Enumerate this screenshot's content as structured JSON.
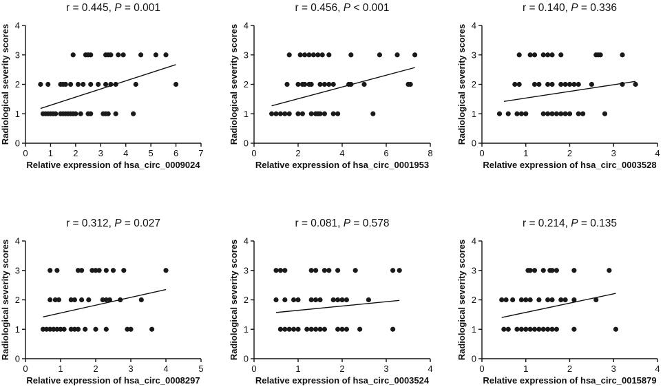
{
  "chart_data": [
    {
      "type": "scatter",
      "title": {
        "pre": "r = 0.445, ",
        "p": "P",
        "post": " = 0.001"
      },
      "xlabel": "Relative expression of hsa_circ_0009024",
      "ylabel": "Radiological severity scores",
      "xlim": [
        0,
        7
      ],
      "ylim": [
        0,
        4
      ],
      "xticks": [
        0,
        1,
        2,
        3,
        4,
        5,
        6,
        7
      ],
      "yticks": [
        0,
        1,
        2,
        3,
        4
      ],
      "points": [
        [
          0.7,
          1
        ],
        [
          0.8,
          1
        ],
        [
          0.9,
          1
        ],
        [
          1.0,
          1
        ],
        [
          1.1,
          1
        ],
        [
          1.2,
          1
        ],
        [
          1.4,
          1
        ],
        [
          1.5,
          1
        ],
        [
          1.6,
          1
        ],
        [
          1.7,
          1
        ],
        [
          1.8,
          1
        ],
        [
          1.9,
          1
        ],
        [
          2.0,
          1
        ],
        [
          2.2,
          1
        ],
        [
          2.5,
          1
        ],
        [
          2.6,
          1
        ],
        [
          3.1,
          1
        ],
        [
          3.2,
          1
        ],
        [
          3.3,
          1
        ],
        [
          3.6,
          1
        ],
        [
          4.3,
          1
        ],
        [
          0.6,
          2
        ],
        [
          0.9,
          2
        ],
        [
          1.4,
          2
        ],
        [
          1.5,
          2
        ],
        [
          1.6,
          2
        ],
        [
          1.8,
          2
        ],
        [
          2.1,
          2
        ],
        [
          2.3,
          2
        ],
        [
          2.6,
          2
        ],
        [
          2.9,
          2
        ],
        [
          3.2,
          2
        ],
        [
          3.4,
          2
        ],
        [
          3.6,
          2
        ],
        [
          4.4,
          2
        ],
        [
          6.0,
          2
        ],
        [
          1.9,
          3
        ],
        [
          2.4,
          3
        ],
        [
          2.5,
          3
        ],
        [
          2.6,
          3
        ],
        [
          3.2,
          3
        ],
        [
          3.3,
          3
        ],
        [
          3.4,
          3
        ],
        [
          3.7,
          3
        ],
        [
          3.9,
          3
        ],
        [
          4.6,
          3
        ],
        [
          5.2,
          3
        ],
        [
          5.6,
          3
        ]
      ],
      "fit": {
        "x": [
          0.6,
          6.0
        ],
        "y": [
          1.18,
          2.67
        ]
      }
    },
    {
      "type": "scatter",
      "title": {
        "pre": "r = 0.456, ",
        "p": "P",
        "post": " < 0.001"
      },
      "xlabel": "Relative expression of hsa_circ_0001953",
      "ylabel": "Radiological severity scores",
      "xlim": [
        0,
        8
      ],
      "ylim": [
        0,
        4
      ],
      "xticks": [
        0,
        2,
        4,
        6,
        8
      ],
      "yticks": [
        0,
        1,
        2,
        3,
        4
      ],
      "points": [
        [
          0.8,
          1
        ],
        [
          1.0,
          1
        ],
        [
          1.2,
          1
        ],
        [
          1.4,
          1
        ],
        [
          1.6,
          1
        ],
        [
          2.0,
          1
        ],
        [
          2.2,
          1
        ],
        [
          2.6,
          1
        ],
        [
          2.8,
          1
        ],
        [
          2.9,
          1
        ],
        [
          3.0,
          1
        ],
        [
          3.2,
          1
        ],
        [
          3.6,
          1
        ],
        [
          3.8,
          1
        ],
        [
          5.4,
          1
        ],
        [
          1.5,
          2
        ],
        [
          2.0,
          2
        ],
        [
          2.2,
          2
        ],
        [
          2.3,
          2
        ],
        [
          2.5,
          2
        ],
        [
          2.6,
          2
        ],
        [
          3.0,
          2
        ],
        [
          3.2,
          2
        ],
        [
          3.4,
          2
        ],
        [
          3.6,
          2
        ],
        [
          4.3,
          2
        ],
        [
          4.4,
          2
        ],
        [
          5.0,
          2
        ],
        [
          7.0,
          2
        ],
        [
          7.1,
          2
        ],
        [
          1.6,
          3
        ],
        [
          2.1,
          3
        ],
        [
          2.3,
          3
        ],
        [
          2.5,
          3
        ],
        [
          2.7,
          3
        ],
        [
          2.9,
          3
        ],
        [
          3.1,
          3
        ],
        [
          3.4,
          3
        ],
        [
          4.4,
          3
        ],
        [
          5.7,
          3
        ],
        [
          6.5,
          3
        ],
        [
          7.3,
          3
        ]
      ],
      "fit": {
        "x": [
          0.8,
          7.3
        ],
        "y": [
          1.27,
          2.57
        ]
      }
    },
    {
      "type": "scatter",
      "title": {
        "pre": "r = 0.140, ",
        "p": "P",
        "post": " = 0.336"
      },
      "xlabel": "Relative expression of hsa_circ_0003528",
      "ylabel": "Radiological severity scores",
      "xlim": [
        0,
        4
      ],
      "ylim": [
        0,
        4
      ],
      "xticks": [
        0,
        1,
        2,
        3,
        4
      ],
      "yticks": [
        0,
        1,
        2,
        3,
        4
      ],
      "points": [
        [
          0.4,
          1
        ],
        [
          0.6,
          1
        ],
        [
          0.8,
          1
        ],
        [
          0.9,
          1
        ],
        [
          1.0,
          1
        ],
        [
          1.4,
          1
        ],
        [
          1.5,
          1
        ],
        [
          1.6,
          1
        ],
        [
          1.7,
          1
        ],
        [
          1.8,
          1
        ],
        [
          1.9,
          1
        ],
        [
          2.0,
          1
        ],
        [
          2.2,
          1
        ],
        [
          2.3,
          1
        ],
        [
          2.8,
          1
        ],
        [
          0.75,
          2
        ],
        [
          0.85,
          2
        ],
        [
          1.2,
          2
        ],
        [
          1.3,
          2
        ],
        [
          1.5,
          2
        ],
        [
          1.6,
          2
        ],
        [
          1.8,
          2
        ],
        [
          1.9,
          2
        ],
        [
          2.0,
          2
        ],
        [
          2.1,
          2
        ],
        [
          2.2,
          2
        ],
        [
          2.5,
          2
        ],
        [
          3.2,
          2
        ],
        [
          3.5,
          2
        ],
        [
          0.85,
          3
        ],
        [
          1.1,
          3
        ],
        [
          1.2,
          3
        ],
        [
          1.4,
          3
        ],
        [
          1.5,
          3
        ],
        [
          1.6,
          3
        ],
        [
          1.8,
          3
        ],
        [
          2.6,
          3
        ],
        [
          2.65,
          3
        ],
        [
          2.7,
          3
        ],
        [
          3.2,
          3
        ]
      ],
      "fit": {
        "x": [
          0.5,
          3.5
        ],
        "y": [
          1.42,
          2.1
        ]
      }
    },
    {
      "type": "scatter",
      "title": {
        "pre": "r = 0.312, ",
        "p": "P",
        "post": " = 0.027"
      },
      "xlabel": "Relative expression of hsa_circ_0008297",
      "ylabel": "Radiological severity scores",
      "xlim": [
        0,
        5
      ],
      "ylim": [
        0,
        4
      ],
      "xticks": [
        0,
        1,
        2,
        3,
        4,
        5
      ],
      "yticks": [
        0,
        1,
        2,
        3,
        4
      ],
      "points": [
        [
          0.5,
          1
        ],
        [
          0.6,
          1
        ],
        [
          0.7,
          1
        ],
        [
          0.8,
          1
        ],
        [
          0.9,
          1
        ],
        [
          1.0,
          1
        ],
        [
          1.1,
          1
        ],
        [
          1.3,
          1
        ],
        [
          1.4,
          1
        ],
        [
          1.5,
          1
        ],
        [
          1.7,
          1
        ],
        [
          2.0,
          1
        ],
        [
          2.3,
          1
        ],
        [
          2.9,
          1
        ],
        [
          3.0,
          1
        ],
        [
          3.6,
          1
        ],
        [
          0.7,
          2
        ],
        [
          0.85,
          2
        ],
        [
          0.95,
          2
        ],
        [
          1.3,
          2
        ],
        [
          1.4,
          2
        ],
        [
          1.6,
          2
        ],
        [
          1.8,
          2
        ],
        [
          2.2,
          2
        ],
        [
          2.3,
          2
        ],
        [
          2.4,
          2
        ],
        [
          2.7,
          2
        ],
        [
          3.3,
          2
        ],
        [
          0.7,
          3
        ],
        [
          0.9,
          3
        ],
        [
          1.5,
          3
        ],
        [
          1.6,
          3
        ],
        [
          1.9,
          3
        ],
        [
          2.0,
          3
        ],
        [
          2.1,
          3
        ],
        [
          2.3,
          3
        ],
        [
          2.5,
          3
        ],
        [
          2.8,
          3
        ],
        [
          4.0,
          3
        ]
      ],
      "fit": {
        "x": [
          0.5,
          4.0
        ],
        "y": [
          1.42,
          2.35
        ]
      }
    },
    {
      "type": "scatter",
      "title": {
        "pre": "r = 0.081, ",
        "p": "P",
        "post": " = 0.578"
      },
      "xlabel": "Relative expression of hsa_circ_0003524",
      "ylabel": "Radiological severity scores",
      "xlim": [
        0,
        4
      ],
      "ylim": [
        0,
        4
      ],
      "xticks": [
        0,
        1,
        2,
        3,
        4
      ],
      "yticks": [
        0,
        1,
        2,
        3,
        4
      ],
      "points": [
        [
          0.6,
          1
        ],
        [
          0.7,
          1
        ],
        [
          0.8,
          1
        ],
        [
          0.9,
          1
        ],
        [
          1.0,
          1
        ],
        [
          1.2,
          1
        ],
        [
          1.3,
          1
        ],
        [
          1.4,
          1
        ],
        [
          1.5,
          1
        ],
        [
          1.6,
          1
        ],
        [
          1.9,
          1
        ],
        [
          2.0,
          1
        ],
        [
          2.1,
          1
        ],
        [
          2.4,
          1
        ],
        [
          3.15,
          1
        ],
        [
          0.5,
          2
        ],
        [
          0.7,
          2
        ],
        [
          0.9,
          2
        ],
        [
          1.0,
          2
        ],
        [
          1.3,
          2
        ],
        [
          1.4,
          2
        ],
        [
          1.5,
          2
        ],
        [
          1.8,
          2
        ],
        [
          1.9,
          2
        ],
        [
          2.0,
          2
        ],
        [
          2.1,
          2
        ],
        [
          2.6,
          2
        ],
        [
          0.5,
          3
        ],
        [
          0.6,
          3
        ],
        [
          0.7,
          3
        ],
        [
          1.3,
          3
        ],
        [
          1.4,
          3
        ],
        [
          1.6,
          3
        ],
        [
          1.7,
          3
        ],
        [
          1.9,
          3
        ],
        [
          2.3,
          3
        ],
        [
          3.15,
          3
        ],
        [
          3.3,
          3
        ]
      ],
      "fit": {
        "x": [
          0.5,
          3.3
        ],
        "y": [
          1.57,
          1.98
        ]
      }
    },
    {
      "type": "scatter",
      "title": {
        "pre": "r = 0.214, ",
        "p": "P",
        "post": " = 0.135"
      },
      "xlabel": "Relative expression of hsa_circ_0015879",
      "ylabel": "Radiological severity scores",
      "xlim": [
        0,
        4
      ],
      "ylim": [
        0,
        4
      ],
      "xticks": [
        0,
        1,
        2,
        3,
        4
      ],
      "yticks": [
        0,
        1,
        2,
        3,
        4
      ],
      "points": [
        [
          0.5,
          1
        ],
        [
          0.6,
          1
        ],
        [
          0.8,
          1
        ],
        [
          0.9,
          1
        ],
        [
          1.0,
          1
        ],
        [
          1.1,
          1
        ],
        [
          1.2,
          1
        ],
        [
          1.3,
          1
        ],
        [
          1.4,
          1
        ],
        [
          1.5,
          1
        ],
        [
          1.6,
          1
        ],
        [
          1.7,
          1
        ],
        [
          2.1,
          1
        ],
        [
          3.05,
          1
        ],
        [
          0.45,
          2
        ],
        [
          0.55,
          2
        ],
        [
          0.7,
          2
        ],
        [
          0.9,
          2
        ],
        [
          1.0,
          2
        ],
        [
          1.1,
          2
        ],
        [
          1.3,
          2
        ],
        [
          1.5,
          2
        ],
        [
          1.6,
          2
        ],
        [
          1.8,
          2
        ],
        [
          1.9,
          2
        ],
        [
          2.1,
          2
        ],
        [
          2.6,
          2
        ],
        [
          1.05,
          3
        ],
        [
          1.1,
          3
        ],
        [
          1.2,
          3
        ],
        [
          1.4,
          3
        ],
        [
          1.55,
          3
        ],
        [
          1.6,
          3
        ],
        [
          1.7,
          3
        ],
        [
          2.1,
          3
        ],
        [
          2.9,
          3
        ]
      ],
      "fit": {
        "x": [
          0.45,
          3.05
        ],
        "y": [
          1.4,
          2.22
        ]
      }
    }
  ]
}
